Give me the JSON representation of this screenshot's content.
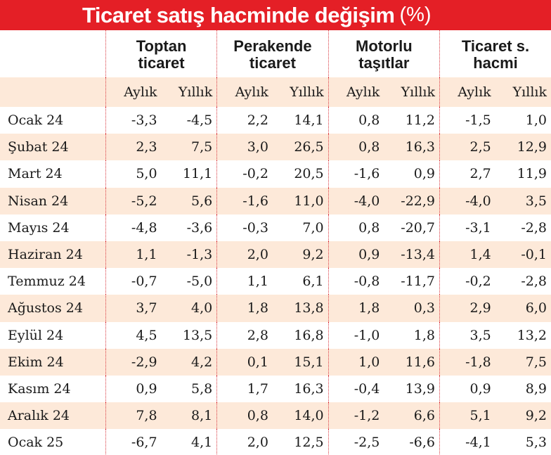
{
  "title": "Ticaret satış hacminde değişim",
  "unit": "(%)",
  "groups": [
    {
      "line1": "Toptan",
      "line2": "ticaret"
    },
    {
      "line1": "Perakende",
      "line2": "ticaret"
    },
    {
      "line1": "Motorlu",
      "line2": "taşıtlar"
    },
    {
      "line1": "Ticaret s.",
      "line2": "hacmi"
    }
  ],
  "sub": {
    "monthly": "Aylık",
    "yearly": "Yıllık"
  },
  "rows": [
    {
      "month": "Ocak 24",
      "v": [
        "-3,3",
        "-4,5",
        "2,2",
        "14,1",
        "0,8",
        "11,2",
        "-1,5",
        "1,0"
      ]
    },
    {
      "month": "Şubat 24",
      "v": [
        "2,3",
        "7,5",
        "3,0",
        "26,5",
        "0,8",
        "16,3",
        "2,5",
        "12,9"
      ]
    },
    {
      "month": "Mart 24",
      "v": [
        "5,0",
        "11,1",
        "-0,2",
        "20,5",
        "-1,6",
        "0,9",
        "2,7",
        "11,9"
      ]
    },
    {
      "month": "Nisan 24",
      "v": [
        "-5,2",
        "5,6",
        "-1,6",
        "11,0",
        "-4,0",
        "-22,9",
        "-4,0",
        "3,5"
      ]
    },
    {
      "month": "Mayıs 24",
      "v": [
        "-4,8",
        "-3,6",
        "-0,3",
        "7,0",
        "0,8",
        "-20,7",
        "-3,1",
        "-2,8"
      ]
    },
    {
      "month": "Haziran 24",
      "v": [
        "1,1",
        "-1,3",
        "2,0",
        "9,2",
        "0,9",
        "-13,4",
        "1,4",
        "-0,1"
      ]
    },
    {
      "month": "Temmuz 24",
      "v": [
        "-0,7",
        "-5,0",
        "1,1",
        "6,1",
        "-0,8",
        "-11,7",
        "-0,2",
        "-2,8"
      ]
    },
    {
      "month": "Ağustos 24",
      "v": [
        "3,7",
        "4,0",
        "1,8",
        "13,8",
        "1,8",
        "0,3",
        "2,9",
        "6,0"
      ]
    },
    {
      "month": "Eylül 24",
      "v": [
        "4,5",
        "13,5",
        "2,8",
        "16,8",
        "-1,0",
        "1,8",
        "3,5",
        "13,2"
      ]
    },
    {
      "month": "Ekim 24",
      "v": [
        "-2,9",
        "4,2",
        "0,1",
        "15,1",
        "1,0",
        "11,6",
        "-1,8",
        "7,5"
      ]
    },
    {
      "month": "Kasım 24",
      "v": [
        "0,9",
        "5,8",
        "1,7",
        "16,3",
        "-0,4",
        "13,9",
        "0,9",
        "8,9"
      ]
    },
    {
      "month": "Aralık 24",
      "v": [
        "7,8",
        "8,1",
        "0,8",
        "14,0",
        "-1,2",
        "6,6",
        "5,1",
        "9,2"
      ]
    },
    {
      "month": "Ocak 25",
      "v": [
        "-6,7",
        "4,1",
        "2,0",
        "12,5",
        "-2,5",
        "-6,6",
        "-4,1",
        "5,3"
      ]
    }
  ],
  "colors": {
    "accent": "#e41f26",
    "stripe": "#fde9d9",
    "separator": "#d9383f"
  }
}
